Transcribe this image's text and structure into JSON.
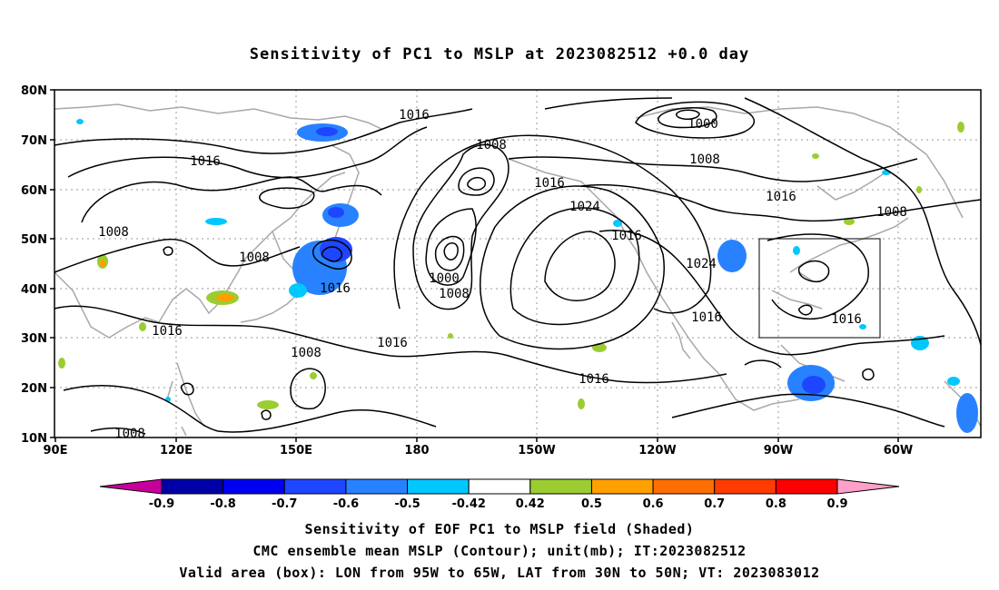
{
  "title": "Sensitivity of PC1 to MSLP at 2023082512 +0.0 day",
  "map": {
    "lon_range": [
      "90E",
      "40W"
    ],
    "lat_range": [
      "10N",
      "80N"
    ],
    "lat_ticks": [
      "80N",
      "70N",
      "60N",
      "50N",
      "40N",
      "30N",
      "20N",
      "10N"
    ],
    "lon_ticks": [
      "90E",
      "120E",
      "150E",
      "180",
      "150W",
      "120W",
      "90W",
      "60W"
    ],
    "grid": "dotted",
    "valid_box": {
      "lon_from": "95W",
      "lon_to": "65W",
      "lat_from": "30N",
      "lat_to": "50N"
    },
    "contour_labels": [
      "1016",
      "1016",
      "1008",
      "1000",
      "1008",
      "1016",
      "1008",
      "1016",
      "1024",
      "1016",
      "1016",
      "1008",
      "1008",
      "1000",
      "1008",
      "1016",
      "1016",
      "1024",
      "1016",
      "1016",
      "1008",
      "1016",
      "1008"
    ]
  },
  "colorbar": {
    "ticks": [
      "-0.9",
      "-0.8",
      "-0.7",
      "-0.6",
      "-0.5",
      "-0.42",
      "0.42",
      "0.5",
      "0.6",
      "0.7",
      "0.8",
      "0.9"
    ],
    "colors": [
      "#0000a8",
      "#0000f0",
      "#1e46ff",
      "#2882ff",
      "#00c8ff",
      "#ffffff",
      "#9bcd32",
      "#ffa000",
      "#ff6e00",
      "#ff3c00",
      "#ff0000"
    ],
    "low_end_color": "#c8009b",
    "high_end_color": "#ffa0c8"
  },
  "captions": {
    "line1": "Sensitivity of EOF PC1 to MSLP field (Shaded)",
    "line2": "CMC ensemble mean MSLP (Contour); unit(mb); IT:2023082512",
    "line3": "Valid area (box): LON from 95W to 65W, LAT from 30N to 50N; VT: 2023083012"
  }
}
